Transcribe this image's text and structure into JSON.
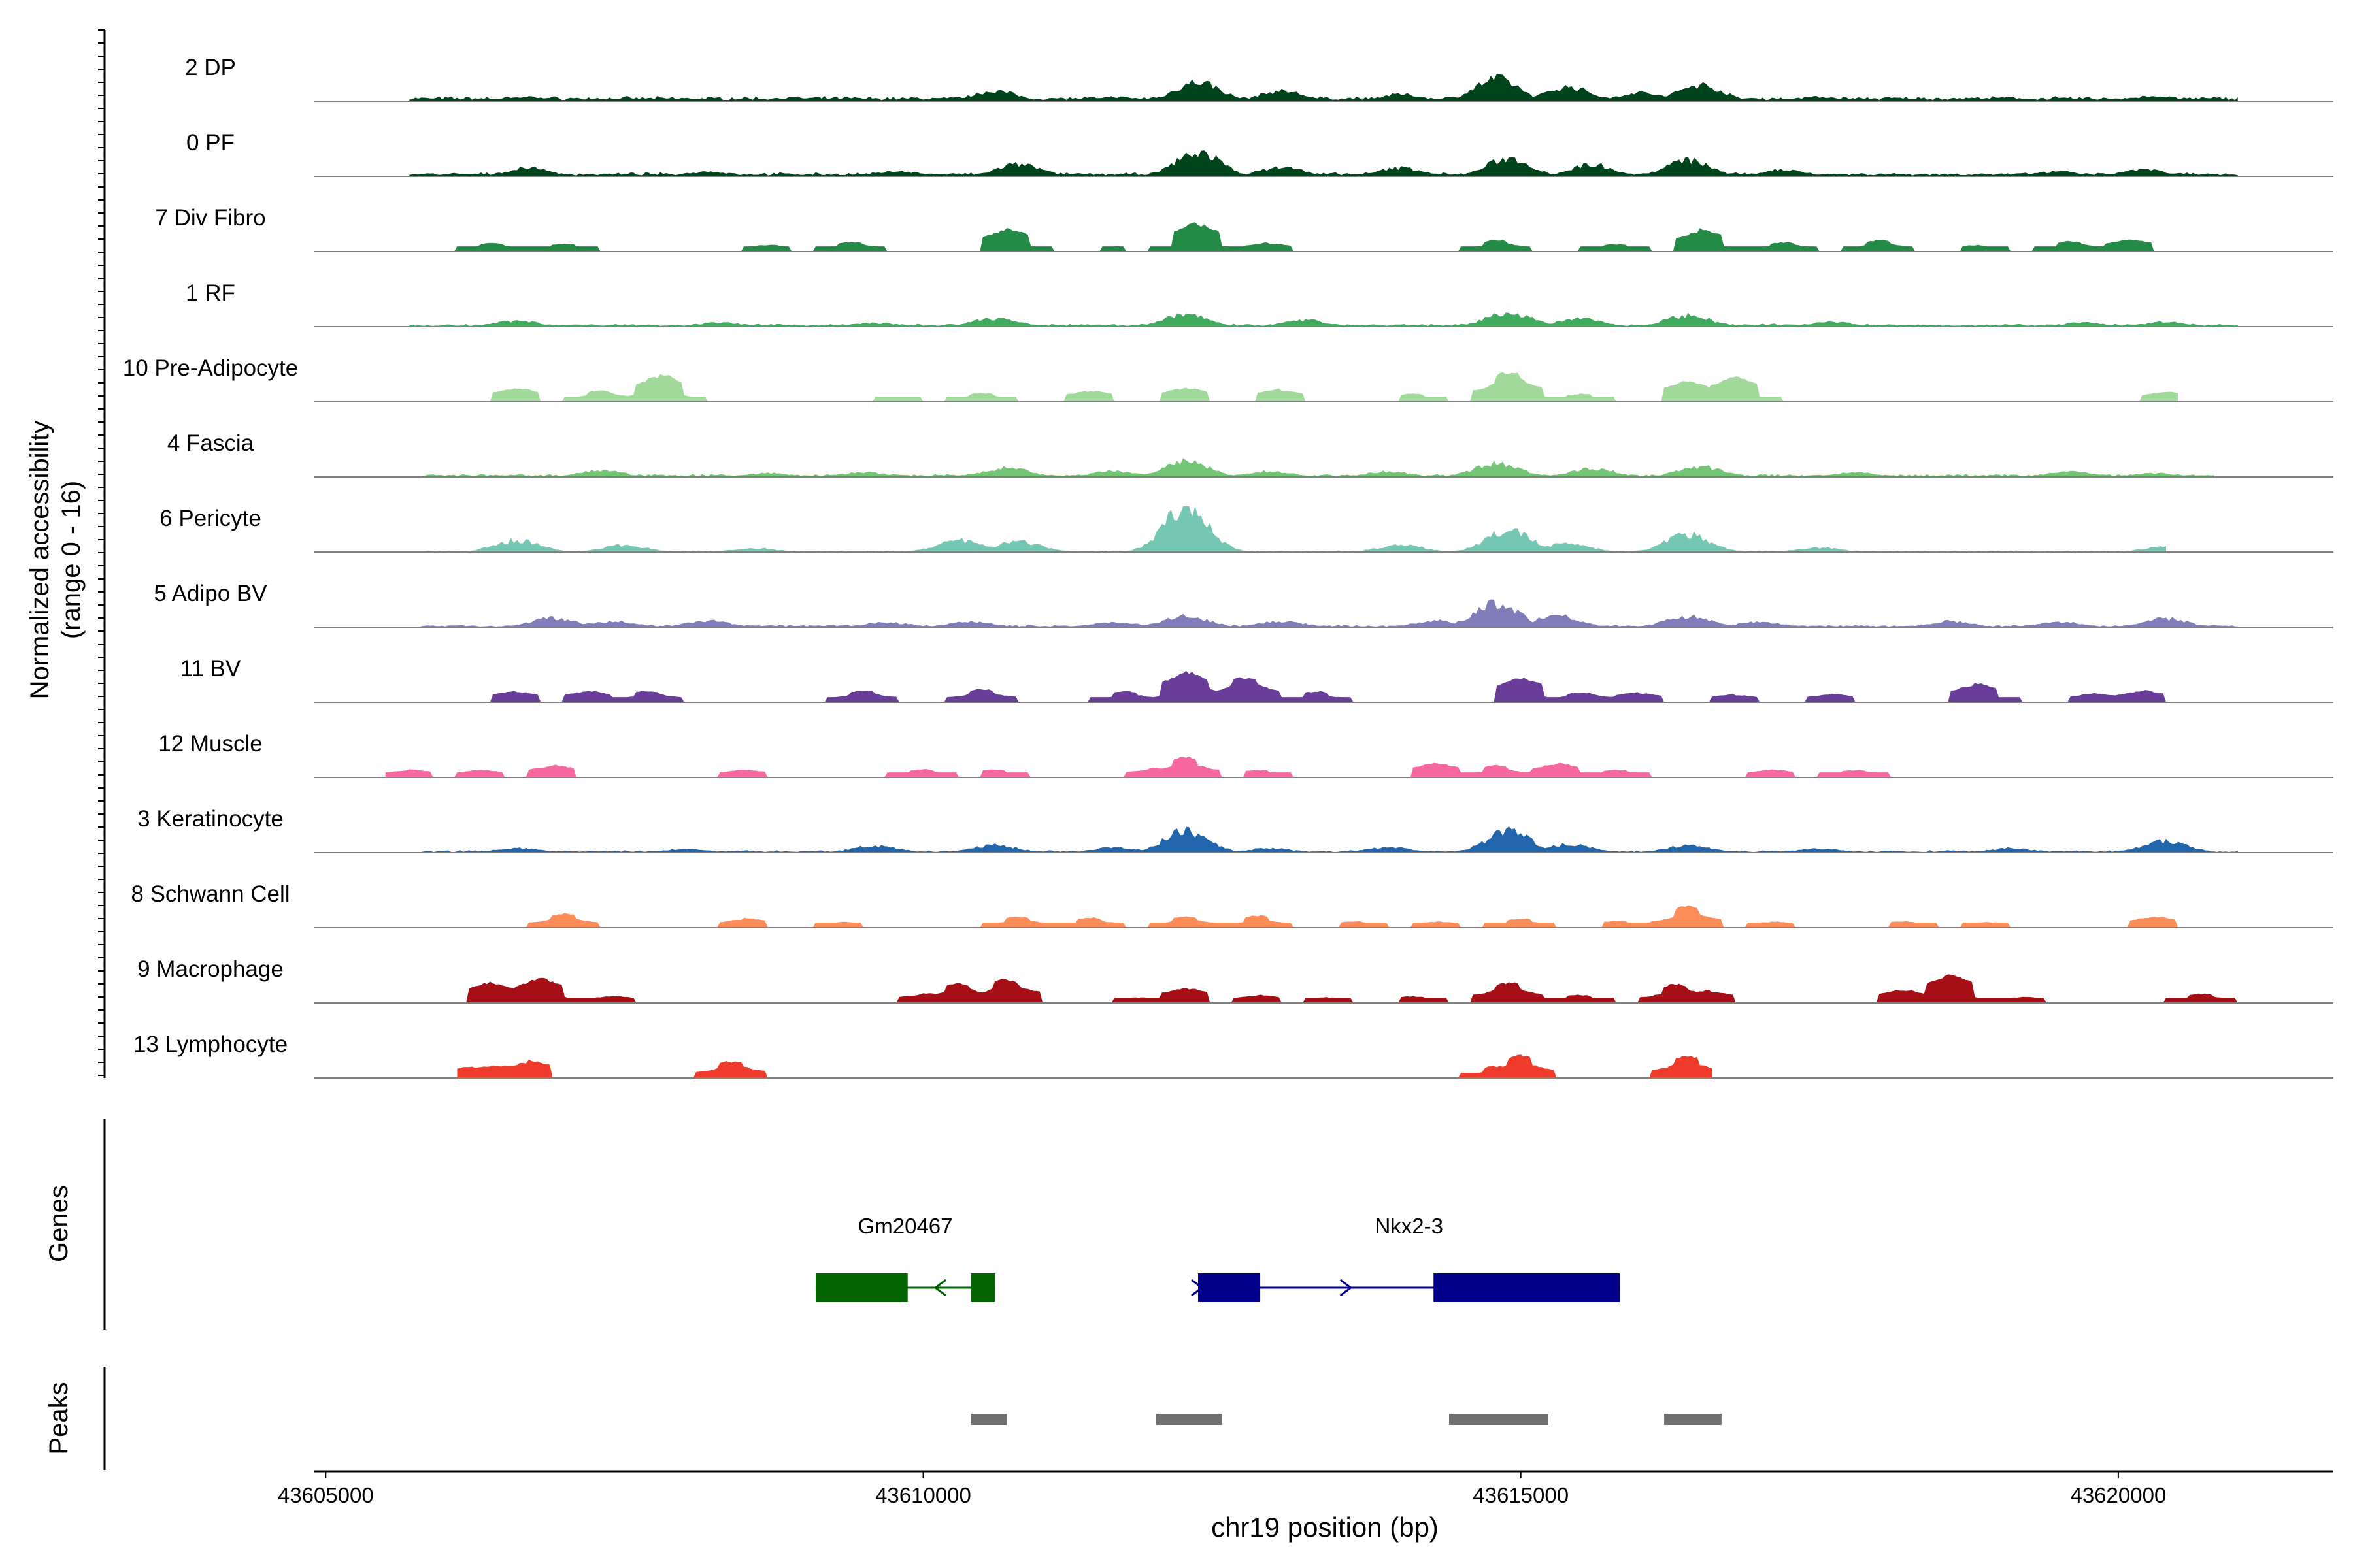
{
  "chart_data": {
    "type": "area",
    "title": "",
    "xlabel": "chr19 position (bp)",
    "ylabel_line1": "Normalized accessibility",
    "ylabel_line2": "(range 0 - 16)",
    "ylim": [
      0,
      16
    ],
    "xlim": [
      43604900,
      43621800
    ],
    "x_ticks": [
      43605000,
      43610000,
      43615000,
      43620000
    ],
    "x_tick_labels": [
      "43605000",
      "43610000",
      "43615000",
      "43620000"
    ],
    "track_labels": {
      "genes": "Genes",
      "peaks": "Peaks"
    },
    "series": [
      {
        "name": "2 DP",
        "color": "#00441b",
        "style": "dense",
        "baseline": 1.0,
        "range": [
          43605700,
          43621000
        ],
        "peaks": [
          [
            43606700,
            1.5
          ],
          [
            43608900,
            1.2
          ],
          [
            43610600,
            3.6
          ],
          [
            43611600,
            1.5
          ],
          [
            43612300,
            6.8
          ],
          [
            43613000,
            3.6
          ],
          [
            43614000,
            2.4
          ],
          [
            43614800,
            7.8
          ],
          [
            43615400,
            5.0
          ],
          [
            43616000,
            3.0
          ],
          [
            43616500,
            5.7
          ],
          [
            43617500,
            1.5
          ],
          [
            43619000,
            1.2
          ],
          [
            43620300,
            1.8
          ]
        ]
      },
      {
        "name": "0 PF",
        "color": "#00441b",
        "style": "dense",
        "baseline": 0.8,
        "range": [
          43605700,
          43621000
        ],
        "peaks": [
          [
            43606700,
            2.9
          ],
          [
            43608200,
            1.7
          ],
          [
            43609800,
            1.8
          ],
          [
            43610800,
            4.2
          ],
          [
            43612300,
            8.5
          ],
          [
            43613000,
            3.2
          ],
          [
            43614000,
            3.0
          ],
          [
            43614900,
            6.2
          ],
          [
            43615600,
            4.1
          ],
          [
            43616400,
            5.6
          ],
          [
            43617200,
            2.4
          ],
          [
            43619500,
            1.7
          ],
          [
            43620200,
            2.4
          ]
        ]
      },
      {
        "name": "7 Div Fibro",
        "color": "#238b45",
        "style": "blocks",
        "baseline": 0,
        "range": [
          43605900,
          43620800
        ],
        "peaks": [
          [
            43606400,
            3.5
          ],
          [
            43607000,
            3.1
          ],
          [
            43608700,
            2.8
          ],
          [
            43609400,
            3.8
          ],
          [
            43610700,
            8.5
          ],
          [
            43611600,
            2.1
          ],
          [
            43612300,
            10.6
          ],
          [
            43612900,
            3.4
          ],
          [
            43614800,
            4.6
          ],
          [
            43615800,
            3.0
          ],
          [
            43616500,
            8.3
          ],
          [
            43617200,
            3.4
          ],
          [
            43618000,
            4.2
          ],
          [
            43618800,
            2.5
          ],
          [
            43619600,
            4.0
          ],
          [
            43620100,
            4.8
          ]
        ]
      },
      {
        "name": "1 RF",
        "color": "#41ab5d",
        "style": "dense",
        "baseline": 0.6,
        "range": [
          43605700,
          43621000
        ],
        "peaks": [
          [
            43606600,
            2.0
          ],
          [
            43608300,
            1.4
          ],
          [
            43609600,
            1.3
          ],
          [
            43610600,
            2.9
          ],
          [
            43612200,
            4.2
          ],
          [
            43613200,
            2.2
          ],
          [
            43614900,
            5.0
          ],
          [
            43615500,
            2.8
          ],
          [
            43616400,
            4.0
          ],
          [
            43617600,
            1.7
          ],
          [
            43619700,
            1.4
          ],
          [
            43620400,
            1.6
          ]
        ]
      },
      {
        "name": "10 Pre-Adipocyte",
        "color": "#a1d99b",
        "style": "blocks",
        "baseline": 0,
        "range": [
          43605400,
          43620500
        ],
        "peaks": [
          [
            43606600,
            5.5
          ],
          [
            43607300,
            4.5
          ],
          [
            43607800,
            11.0
          ],
          [
            43609700,
            2.0
          ],
          [
            43610500,
            3.5
          ],
          [
            43611400,
            4.5
          ],
          [
            43612200,
            5.3
          ],
          [
            43613000,
            5.0
          ],
          [
            43614100,
            3.0
          ],
          [
            43614900,
            12.5
          ],
          [
            43615500,
            3.0
          ],
          [
            43616400,
            8.0
          ],
          [
            43616800,
            9.3
          ],
          [
            43620400,
            4.0
          ]
        ]
      },
      {
        "name": "4 Fascia",
        "color": "#74c476",
        "style": "dense",
        "baseline": 0.6,
        "range": [
          43605800,
          43620800
        ],
        "peaks": [
          [
            43607300,
            2.3
          ],
          [
            43608700,
            1.3
          ],
          [
            43609500,
            1.6
          ],
          [
            43610700,
            3.1
          ],
          [
            43611600,
            2.0
          ],
          [
            43612200,
            5.4
          ],
          [
            43612900,
            2.0
          ],
          [
            43613900,
            1.9
          ],
          [
            43614800,
            4.8
          ],
          [
            43615600,
            2.9
          ],
          [
            43616500,
            3.6
          ],
          [
            43617800,
            1.6
          ],
          [
            43619600,
            1.9
          ],
          [
            43620300,
            1.4
          ]
        ]
      },
      {
        "name": "6 Pericyte",
        "color": "#74c7b3",
        "style": "dense",
        "baseline": 0.3,
        "range": [
          43605800,
          43620400
        ],
        "peaks": [
          [
            43606600,
            4.1
          ],
          [
            43607500,
            2.4
          ],
          [
            43608600,
            1.3
          ],
          [
            43610300,
            4.1
          ],
          [
            43610800,
            3.7
          ],
          [
            43612200,
            15.5
          ],
          [
            43614000,
            2.5
          ],
          [
            43614900,
            7.5
          ],
          [
            43615400,
            3.0
          ],
          [
            43616400,
            6.2
          ],
          [
            43617500,
            1.5
          ],
          [
            43620400,
            1.8
          ]
        ]
      },
      {
        "name": "5 Adipo BV",
        "color": "#807dba",
        "style": "dense",
        "baseline": 0.5,
        "range": [
          43605800,
          43621000
        ],
        "peaks": [
          [
            43606900,
            3.2
          ],
          [
            43607400,
            2.1
          ],
          [
            43608200,
            2.2
          ],
          [
            43609700,
            1.7
          ],
          [
            43610400,
            1.8
          ],
          [
            43611600,
            1.8
          ],
          [
            43612200,
            3.8
          ],
          [
            43613000,
            2.1
          ],
          [
            43614300,
            2.2
          ],
          [
            43614800,
            8.5
          ],
          [
            43615300,
            4.1
          ],
          [
            43616400,
            3.8
          ],
          [
            43617000,
            1.9
          ],
          [
            43618600,
            2.1
          ],
          [
            43619500,
            1.9
          ],
          [
            43620400,
            3.0
          ]
        ]
      },
      {
        "name": "11 BV",
        "color": "#6a3d9a",
        "style": "blocks",
        "baseline": 0,
        "range": [
          43605800,
          43620500
        ],
        "peaks": [
          [
            43606600,
            4.3
          ],
          [
            43607200,
            4.4
          ],
          [
            43607700,
            4.5
          ],
          [
            43609500,
            4.6
          ],
          [
            43610500,
            5.1
          ],
          [
            43611700,
            4.4
          ],
          [
            43612200,
            11.5
          ],
          [
            43612700,
            10.3
          ],
          [
            43613300,
            4.1
          ],
          [
            43615000,
            9.4
          ],
          [
            43615500,
            4.2
          ],
          [
            43616000,
            3.9
          ],
          [
            43616800,
            3.1
          ],
          [
            43617600,
            3.3
          ],
          [
            43618800,
            7.7
          ],
          [
            43619800,
            3.3
          ],
          [
            43620200,
            4.5
          ]
        ]
      },
      {
        "name": "12 Muscle",
        "color": "#f768a1",
        "style": "blocks",
        "baseline": 0,
        "range": [
          43605500,
          43618200
        ],
        "peaks": [
          [
            43605700,
            3.0
          ],
          [
            43606300,
            2.9
          ],
          [
            43606900,
            4.8
          ],
          [
            43608500,
            3.1
          ],
          [
            43610000,
            3.2
          ],
          [
            43610600,
            3.0
          ],
          [
            43611900,
            3.0
          ],
          [
            43612200,
            7.7
          ],
          [
            43612800,
            3.0
          ],
          [
            43614300,
            5.5
          ],
          [
            43614800,
            4.6
          ],
          [
            43615300,
            5.6
          ],
          [
            43615800,
            3.0
          ],
          [
            43617100,
            3.0
          ],
          [
            43617800,
            3.0
          ]
        ]
      },
      {
        "name": "3 Keratinocyte",
        "color": "#2166ac",
        "style": "dense",
        "baseline": 0.5,
        "range": [
          43605800,
          43621000
        ],
        "peaks": [
          [
            43606600,
            1.5
          ],
          [
            43608000,
            1.2
          ],
          [
            43609600,
            2.4
          ],
          [
            43610600,
            2.6
          ],
          [
            43611600,
            1.8
          ],
          [
            43612200,
            7.5
          ],
          [
            43612900,
            1.5
          ],
          [
            43613900,
            1.8
          ],
          [
            43614900,
            7.5
          ],
          [
            43615400,
            3.0
          ],
          [
            43616400,
            2.4
          ],
          [
            43617500,
            1.3
          ],
          [
            43619100,
            1.5
          ],
          [
            43620400,
            4.0
          ]
        ]
      },
      {
        "name": "8 Schwann Cell",
        "color": "#fc8d59",
        "style": "blocks",
        "baseline": 0,
        "range": [
          43605700,
          43621000
        ],
        "peaks": [
          [
            43607000,
            5.2
          ],
          [
            43608500,
            3.6
          ],
          [
            43609300,
            2.5
          ],
          [
            43610800,
            4.5
          ],
          [
            43611400,
            3.8
          ],
          [
            43612200,
            4.3
          ],
          [
            43612800,
            4.6
          ],
          [
            43613600,
            2.6
          ],
          [
            43614300,
            2.3
          ],
          [
            43615000,
            3.6
          ],
          [
            43615800,
            2.7
          ],
          [
            43616400,
            8.1
          ],
          [
            43617100,
            2.5
          ],
          [
            43618200,
            2.5
          ],
          [
            43618900,
            2.2
          ],
          [
            43620300,
            4.5
          ]
        ]
      },
      {
        "name": "9 Macrophage",
        "color": "#a50f15",
        "style": "blocks",
        "baseline": 0,
        "range": [
          43606000,
          43621000
        ],
        "peaks": [
          [
            43606400,
            7.8
          ],
          [
            43606800,
            9.0
          ],
          [
            43607400,
            2.7
          ],
          [
            43608000,
            1.4
          ],
          [
            43610000,
            3.2
          ],
          [
            43610300,
            7.3
          ],
          [
            43610700,
            8.9
          ],
          [
            43611800,
            2.1
          ],
          [
            43612200,
            5.5
          ],
          [
            43612800,
            3.0
          ],
          [
            43613400,
            2.2
          ],
          [
            43614100,
            2.4
          ],
          [
            43614900,
            8.0
          ],
          [
            43615500,
            3.0
          ],
          [
            43616300,
            7.3
          ],
          [
            43616600,
            4.8
          ],
          [
            43618200,
            5.3
          ],
          [
            43618600,
            10.7
          ],
          [
            43619200,
            2.5
          ],
          [
            43620700,
            3.5
          ]
        ]
      },
      {
        "name": "13 Lymphocyte",
        "color": "#ef3b2c",
        "style": "blocks",
        "baseline": 0,
        "range": [
          43606100,
          43616600
        ],
        "peaks": [
          [
            43606200,
            4.5
          ],
          [
            43606400,
            4.5
          ],
          [
            43606700,
            6.5
          ],
          [
            43608400,
            6.5
          ],
          [
            43614800,
            4.5
          ],
          [
            43615000,
            8.5
          ],
          [
            43616400,
            8.5
          ]
        ]
      }
    ],
    "genes": [
      {
        "name": "Gm20467",
        "color": "#006400",
        "strand": "-",
        "start": 43609100,
        "end": 43610600,
        "exons": [
          [
            43609100,
            43609870
          ],
          [
            43610400,
            43610600
          ]
        ]
      },
      {
        "name": "Nkx2-3",
        "color": "#00008b",
        "strand": "+",
        "start": 43612300,
        "end": 43615830,
        "exons": [
          [
            43612300,
            43612820
          ],
          [
            43614270,
            43615830
          ]
        ]
      }
    ],
    "peaks": [
      [
        43610400,
        43610700
      ],
      [
        43611950,
        43612500
      ],
      [
        43614400,
        43615230
      ],
      [
        43616200,
        43616680
      ]
    ]
  }
}
